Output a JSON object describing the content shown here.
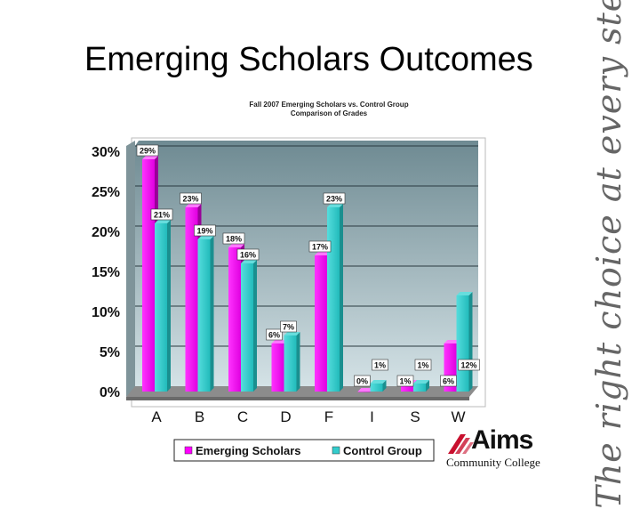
{
  "slide": {
    "title": "Emerging Scholars Outcomes",
    "tagline": "The right choice at every step"
  },
  "logo": {
    "word": "Aims",
    "sub": "Community College",
    "color": "#c8102e"
  },
  "colors": {
    "series_1": "#ff00ff",
    "series_2": "#33cccc",
    "plot_top": "#6e8a92",
    "plot_bottom": "#cfdde2",
    "floor": "#808080"
  },
  "chart_data": {
    "type": "bar",
    "title_lines": [
      "Fall 2007 Emerging Scholars vs. Control Group",
      "Comparison of Grades"
    ],
    "categories": [
      "A",
      "B",
      "C",
      "D",
      "F",
      "I",
      "S",
      "W"
    ],
    "series": [
      {
        "name": "Emerging Scholars",
        "values": [
          29,
          23,
          18,
          6,
          17,
          0,
          1,
          6
        ],
        "labels": [
          "29%",
          "23%",
          "18%",
          "6%",
          "17%",
          "0%",
          "1%",
          "6%"
        ]
      },
      {
        "name": "Control Group",
        "values": [
          21,
          19,
          16,
          7,
          23,
          1,
          1,
          12
        ],
        "labels": [
          "21%",
          "19%",
          "16%",
          "7%",
          "23%",
          "1%",
          "1%",
          "12%"
        ]
      }
    ],
    "y_ticks": [
      "0%",
      "5%",
      "10%",
      "15%",
      "20%",
      "25%",
      "30%"
    ],
    "ylim": [
      0,
      30
    ],
    "grid": true,
    "legend_position": "bottom"
  }
}
